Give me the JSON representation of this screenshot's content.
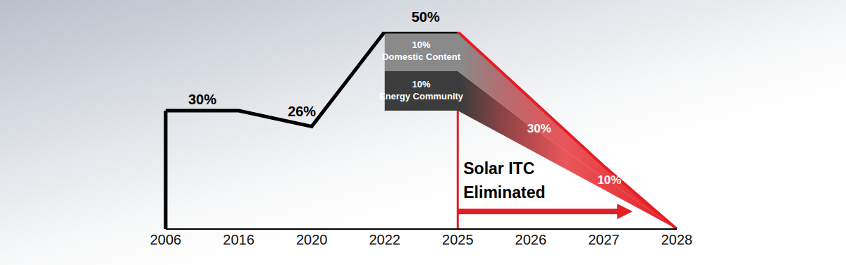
{
  "chart_data": {
    "type": "line",
    "categories": [
      "2006",
      "2016",
      "2020",
      "2022",
      "2025",
      "2026",
      "2027",
      "2028"
    ],
    "ylim": [
      0,
      50
    ],
    "yticks": [
      0,
      50
    ],
    "tick_labels": "x",
    "grid": false,
    "series": [
      {
        "type": "line",
        "color": "#000000",
        "values": [
          30,
          30,
          26,
          50,
          50,
          null,
          null,
          null
        ]
      },
      {
        "type": "line",
        "color": "#e31e24",
        "values": [
          null,
          null,
          null,
          null,
          50,
          33,
          16,
          0
        ]
      },
      {
        "type": "area",
        "name": "Energy Community",
        "label": "10%",
        "color": "#3c3c3c",
        "values": [
          null,
          null,
          null,
          [
            30,
            40
          ],
          [
            30,
            40
          ],
          [
            20,
            26
          ],
          [
            10,
            13
          ],
          [
            0,
            0
          ]
        ]
      },
      {
        "type": "area",
        "name": "Domestic Content",
        "label": "10%",
        "color": "#8a8a8a",
        "values": [
          null,
          null,
          null,
          [
            40,
            50
          ],
          [
            40,
            50
          ],
          [
            26,
            33
          ],
          [
            13,
            16
          ],
          [
            0,
            0
          ]
        ]
      }
    ],
    "annotations": [
      {
        "text": "30%",
        "category": "2006"
      },
      {
        "text": "26%",
        "category": "2020"
      },
      {
        "text": "50%",
        "category": "2022"
      },
      {
        "text": "30%",
        "category": "2026"
      },
      {
        "text": "10%",
        "category": "2027"
      },
      {
        "text": "Solar ITC Eliminated",
        "category": "2025"
      }
    ]
  }
}
